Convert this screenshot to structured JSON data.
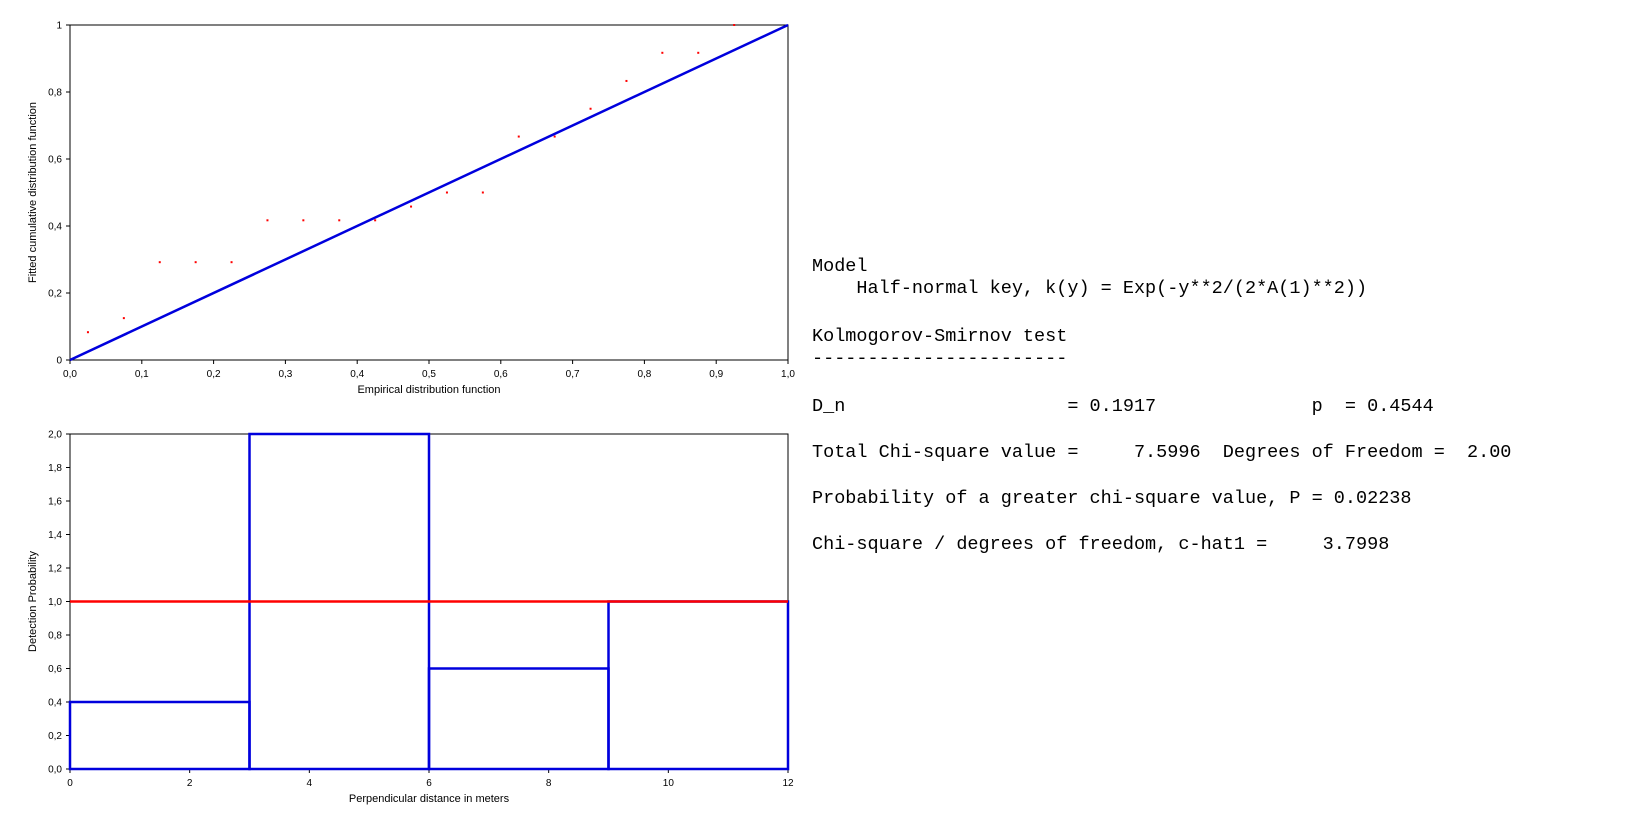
{
  "chart_data": [
    {
      "type": "scatter",
      "xlabel": "Empirical distribution function",
      "ylabel": "Fitted cumulative distribution function",
      "xlim": [
        0,
        1
      ],
      "ylim": [
        0,
        1
      ],
      "x_ticks": [
        "0,0",
        "0,1",
        "0,2",
        "0,3",
        "0,4",
        "0,5",
        "0,6",
        "0,7",
        "0,8",
        "0,9",
        "1,0"
      ],
      "y_ticks": [
        "0",
        "0,2",
        "0,4",
        "0,6",
        "0,8",
        "1"
      ],
      "grid": false,
      "points": {
        "x": [
          0.025,
          0.075,
          0.125,
          0.175,
          0.225,
          0.275,
          0.325,
          0.375,
          0.425,
          0.475,
          0.525,
          0.575,
          0.625,
          0.675,
          0.725,
          0.775,
          0.825,
          0.875,
          0.925
        ],
        "y": [
          0.083,
          0.125,
          0.292,
          0.292,
          0.292,
          0.417,
          0.417,
          0.417,
          0.417,
          0.458,
          0.5,
          0.5,
          0.667,
          0.667,
          0.75,
          0.833,
          0.917,
          0.917,
          1.0
        ],
        "color": "#ff0000"
      },
      "reference_line": {
        "x": [
          0,
          1
        ],
        "y": [
          0,
          1
        ],
        "color": "#0000dd"
      }
    },
    {
      "type": "bar",
      "xlabel": "Perpendicular distance in meters",
      "ylabel": "Detection Probability",
      "xlim": [
        0,
        12
      ],
      "ylim": [
        0,
        2
      ],
      "x_ticks": [
        "0",
        "2",
        "4",
        "6",
        "8",
        "10",
        "12"
      ],
      "y_ticks": [
        "0,0",
        "0,2",
        "0,4",
        "0,6",
        "0,8",
        "1,0",
        "1,2",
        "1,4",
        "1,6",
        "1,8",
        "2,0"
      ],
      "grid": false,
      "bins": [
        {
          "from": 0,
          "to": 3,
          "value": 0.4
        },
        {
          "from": 3,
          "to": 6,
          "value": 2.0
        },
        {
          "from": 6,
          "to": 9,
          "value": 0.6
        },
        {
          "from": 9,
          "to": 12,
          "value": 1.0
        }
      ],
      "bar_color": "#0000dd",
      "fitted_line": {
        "x": [
          0,
          12
        ],
        "y": [
          1.0,
          1.0
        ],
        "color": "#ff0000"
      }
    }
  ],
  "stats": [
    "Model",
    "    Half-normal key, k(y) = Exp(-y**2/(2*A(1)**2))",
    "",
    "Kolmogorov-Smirnov test",
    "-----------------------",
    "",
    "D_n                    = 0.1917              p  = 0.4544",
    "",
    "Total Chi-square value =     7.5996  Degrees of Freedom =  2.00",
    "",
    "Probability of a greater chi-square value, P = 0.02238",
    "",
    "Chi-square / degrees of freedom, c-hat1 =     3.7998"
  ]
}
